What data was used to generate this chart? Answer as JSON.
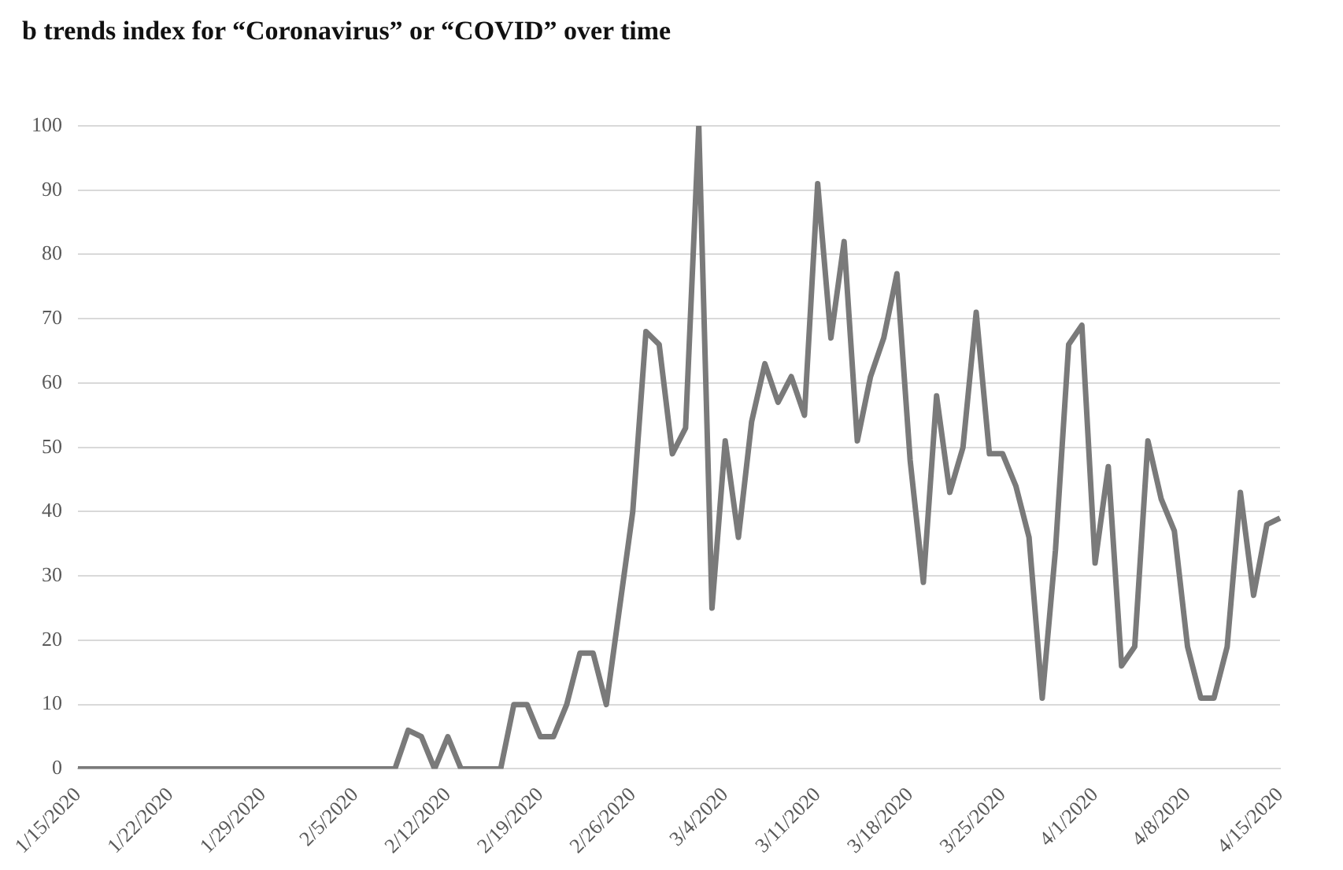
{
  "chart_data": {
    "type": "line",
    "title": "b trends index for “Coronavirus” or “COVID” over time",
    "categories": [
      "1/15/2020",
      null,
      null,
      null,
      null,
      null,
      null,
      "1/22/2020",
      null,
      null,
      null,
      null,
      null,
      null,
      "1/29/2020",
      null,
      null,
      null,
      null,
      null,
      null,
      "2/5/2020",
      null,
      null,
      null,
      null,
      null,
      null,
      "2/12/2020",
      null,
      null,
      null,
      null,
      null,
      null,
      "2/19/2020",
      null,
      null,
      null,
      null,
      null,
      null,
      "2/26/2020",
      null,
      null,
      null,
      null,
      null,
      null,
      "3/4/2020",
      null,
      null,
      null,
      null,
      null,
      null,
      "3/11/2020",
      null,
      null,
      null,
      null,
      null,
      null,
      "3/18/2020",
      null,
      null,
      null,
      null,
      null,
      null,
      "3/25/2020",
      null,
      null,
      null,
      null,
      null,
      null,
      "4/1/2020",
      null,
      null,
      null,
      null,
      null,
      null,
      "4/8/2020",
      null,
      null,
      null,
      null,
      null,
      null,
      "4/15/2020"
    ],
    "series": [
      {
        "color": "#7a7a7a",
        "values": [
          0,
          0,
          0,
          0,
          0,
          0,
          0,
          0,
          0,
          0,
          0,
          0,
          0,
          0,
          0,
          0,
          0,
          0,
          0,
          0,
          0,
          0,
          0,
          0,
          0,
          6,
          5,
          0,
          5,
          0,
          0,
          0,
          0,
          10,
          10,
          5,
          5,
          10,
          18,
          18,
          10,
          25,
          40,
          68,
          66,
          49,
          53,
          100,
          25,
          51,
          36,
          54,
          63,
          57,
          61,
          55,
          91,
          67,
          82,
          51,
          61,
          67,
          77,
          48,
          29,
          58,
          43,
          50,
          71,
          49,
          49,
          44,
          36,
          11,
          34,
          66,
          69,
          32,
          47,
          16,
          19,
          51,
          42,
          37,
          19,
          11,
          11,
          19,
          43,
          27,
          38,
          39
        ]
      }
    ],
    "ylim": [
      0,
      100
    ],
    "yticks": [
      0,
      10,
      20,
      30,
      40,
      50,
      60,
      70,
      80,
      90,
      100
    ],
    "grid": "y",
    "marker": "none",
    "line_style": "solid",
    "legend": false
  }
}
